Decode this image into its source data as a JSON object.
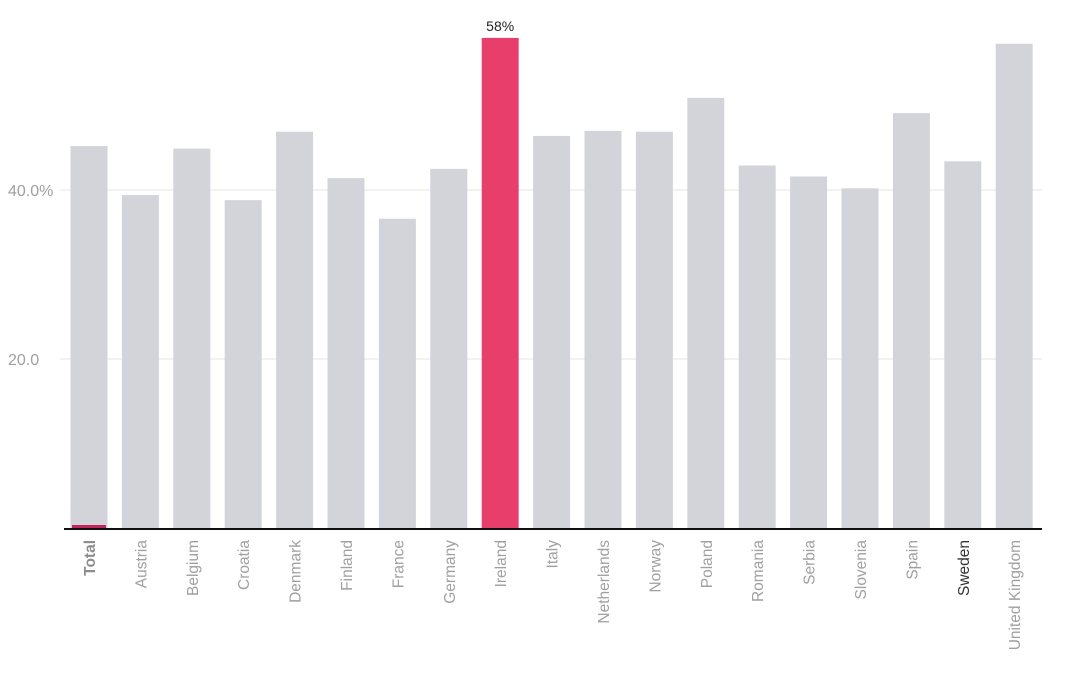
{
  "chart_data": {
    "type": "bar",
    "title": "",
    "xlabel": "",
    "ylabel": "",
    "ylim": [
      0,
      58.5
    ],
    "yticks": [
      {
        "value": 20,
        "label": "20.0"
      },
      {
        "value": 40,
        "label": "40.0%"
      }
    ],
    "grid": true,
    "categories": [
      "Total",
      "Austria",
      "Belgium",
      "Croatia",
      "Denmark",
      "Finland",
      "France",
      "Germany",
      "Ireland",
      "Italy",
      "Netherlands",
      "Norway",
      "Poland",
      "Romania",
      "Serbia",
      "Slovenia",
      "Spain",
      "Sweden",
      "United Kingdom"
    ],
    "values": [
      45.2,
      39.4,
      44.9,
      38.8,
      46.9,
      41.4,
      36.6,
      42.5,
      58.0,
      46.4,
      47.0,
      46.9,
      50.9,
      42.9,
      41.6,
      40.2,
      49.1,
      43.4,
      57.3
    ],
    "highlight": {
      "category": "Ireland",
      "label": "58%"
    },
    "bold_categories": [
      "Total"
    ],
    "dark_categories": [
      "Sweden"
    ],
    "colors": {
      "bar": "#d3d4d9",
      "highlight": "#e83e6c",
      "total_marker": "#c2255a",
      "grid": "#e6e6e6",
      "axis": "#111111"
    }
  }
}
